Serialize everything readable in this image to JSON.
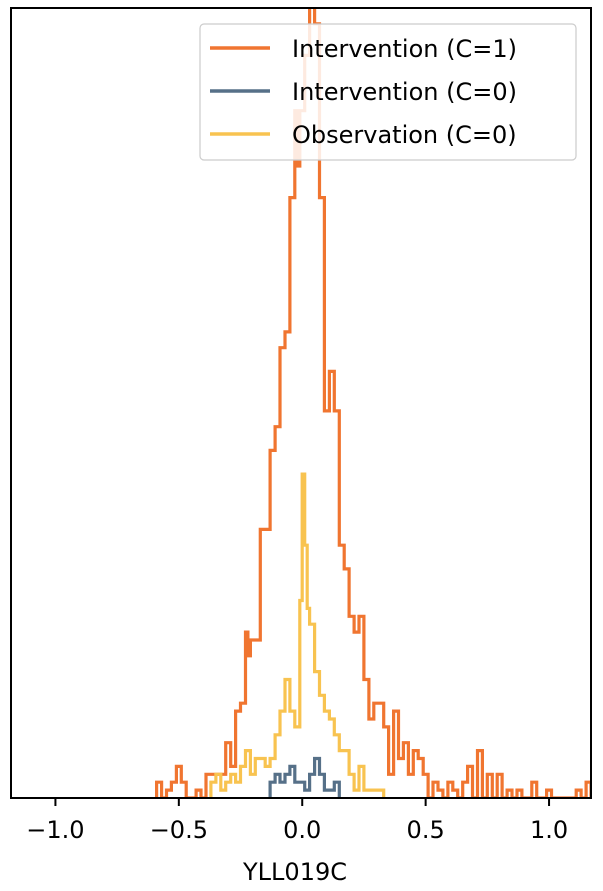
{
  "chart_data": {
    "type": "histogram-step",
    "xlabel": "YLL019C",
    "ylabel": "",
    "xlim": [
      -1.18,
      1.17
    ],
    "ylim": [
      0,
      100
    ],
    "x_ticks": [
      -1.0,
      -0.5,
      0.0,
      0.5,
      1.0
    ],
    "x_tick_labels": [
      "−1.0",
      "−0.5",
      "0.0",
      "0.5",
      "1.0"
    ],
    "y_ticks": [],
    "grid": false,
    "legend_position": "top-right",
    "series": [
      {
        "name": "Intervention (C=1)",
        "color": "#f07530",
        "points": [
          [
            -0.59,
            0
          ],
          [
            -0.59,
            2
          ],
          [
            -0.57,
            0
          ],
          [
            -0.55,
            1
          ],
          [
            -0.53,
            2
          ],
          [
            -0.51,
            4
          ],
          [
            -0.49,
            2
          ],
          [
            -0.47,
            0
          ],
          [
            -0.45,
            0
          ],
          [
            -0.43,
            1
          ],
          [
            -0.41,
            0
          ],
          [
            -0.39,
            3
          ],
          [
            -0.37,
            3
          ],
          [
            -0.35,
            3
          ],
          [
            -0.33,
            3
          ],
          [
            -0.31,
            7
          ],
          [
            -0.29,
            4
          ],
          [
            -0.27,
            11
          ],
          [
            -0.25,
            12
          ],
          [
            -0.23,
            21
          ],
          [
            -0.22,
            18
          ],
          [
            -0.21,
            20
          ],
          [
            -0.19,
            20
          ],
          [
            -0.17,
            34
          ],
          [
            -0.15,
            34
          ],
          [
            -0.13,
            44
          ],
          [
            -0.11,
            47
          ],
          [
            -0.09,
            57
          ],
          [
            -0.07,
            59
          ],
          [
            -0.05,
            76
          ],
          [
            -0.03,
            87
          ],
          [
            -0.02,
            80
          ],
          [
            -0.01,
            87
          ],
          [
            0.01,
            94
          ],
          [
            0.03,
            101
          ],
          [
            0.05,
            98
          ],
          [
            0.07,
            76
          ],
          [
            0.09,
            49
          ],
          [
            0.11,
            54
          ],
          [
            0.13,
            49
          ],
          [
            0.15,
            32
          ],
          [
            0.17,
            29
          ],
          [
            0.19,
            23
          ],
          [
            0.21,
            21
          ],
          [
            0.23,
            23
          ],
          [
            0.25,
            15
          ],
          [
            0.27,
            10
          ],
          [
            0.29,
            12
          ],
          [
            0.31,
            12
          ],
          [
            0.33,
            9
          ],
          [
            0.35,
            3
          ],
          [
            0.37,
            11
          ],
          [
            0.39,
            5
          ],
          [
            0.41,
            7
          ],
          [
            0.43,
            3
          ],
          [
            0.45,
            6
          ],
          [
            0.47,
            5
          ],
          [
            0.49,
            3
          ],
          [
            0.51,
            0
          ],
          [
            0.53,
            2
          ],
          [
            0.55,
            1
          ],
          [
            0.57,
            0
          ],
          [
            0.59,
            2
          ],
          [
            0.61,
            1
          ],
          [
            0.63,
            0
          ],
          [
            0.65,
            2
          ],
          [
            0.67,
            4
          ],
          [
            0.69,
            0
          ],
          [
            0.71,
            6
          ],
          [
            0.73,
            0
          ],
          [
            0.75,
            3
          ],
          [
            0.77,
            0
          ],
          [
            0.79,
            3
          ],
          [
            0.81,
            0
          ],
          [
            0.83,
            1
          ],
          [
            0.85,
            0
          ],
          [
            0.87,
            1
          ],
          [
            0.89,
            0
          ],
          [
            0.91,
            0
          ],
          [
            0.93,
            2
          ],
          [
            0.95,
            0
          ],
          [
            0.97,
            0
          ],
          [
            0.99,
            1
          ],
          [
            1.01,
            0
          ],
          [
            1.03,
            0
          ],
          [
            1.05,
            0
          ],
          [
            1.07,
            0
          ],
          [
            1.09,
            0
          ],
          [
            1.11,
            1
          ],
          [
            1.13,
            0
          ],
          [
            1.15,
            2
          ],
          [
            1.17,
            0
          ]
        ]
      },
      {
        "name": "Intervention (C=0)",
        "color": "#567088",
        "points": [
          [
            -0.13,
            0
          ],
          [
            -0.13,
            2
          ],
          [
            -0.11,
            3
          ],
          [
            -0.09,
            2
          ],
          [
            -0.07,
            3
          ],
          [
            -0.05,
            4
          ],
          [
            -0.03,
            2
          ],
          [
            -0.01,
            2
          ],
          [
            0.01,
            1
          ],
          [
            0.03,
            3
          ],
          [
            0.05,
            5
          ],
          [
            0.07,
            3
          ],
          [
            0.09,
            1
          ],
          [
            0.11,
            1
          ],
          [
            0.13,
            2
          ],
          [
            0.15,
            0
          ]
        ]
      },
      {
        "name": "Observation (C=0)",
        "color": "#f8c350",
        "points": [
          [
            -0.37,
            0
          ],
          [
            -0.37,
            2
          ],
          [
            -0.35,
            3
          ],
          [
            -0.33,
            1
          ],
          [
            -0.31,
            2
          ],
          [
            -0.29,
            3
          ],
          [
            -0.27,
            2
          ],
          [
            -0.25,
            4
          ],
          [
            -0.23,
            6
          ],
          [
            -0.21,
            3
          ],
          [
            -0.19,
            5
          ],
          [
            -0.17,
            5
          ],
          [
            -0.15,
            4
          ],
          [
            -0.13,
            5
          ],
          [
            -0.11,
            8
          ],
          [
            -0.09,
            11
          ],
          [
            -0.07,
            15
          ],
          [
            -0.05,
            11
          ],
          [
            -0.03,
            9
          ],
          [
            -0.01,
            25
          ],
          [
            0.0,
            41
          ],
          [
            0.01,
            32
          ],
          [
            0.02,
            24
          ],
          [
            0.03,
            22
          ],
          [
            0.05,
            16
          ],
          [
            0.07,
            13
          ],
          [
            0.09,
            11
          ],
          [
            0.11,
            10
          ],
          [
            0.13,
            8
          ],
          [
            0.15,
            6
          ],
          [
            0.17,
            6
          ],
          [
            0.19,
            3
          ],
          [
            0.21,
            1
          ],
          [
            0.23,
            4
          ],
          [
            0.25,
            1
          ],
          [
            0.27,
            1
          ],
          [
            0.29,
            1
          ],
          [
            0.31,
            1
          ],
          [
            0.33,
            0
          ]
        ]
      }
    ]
  }
}
